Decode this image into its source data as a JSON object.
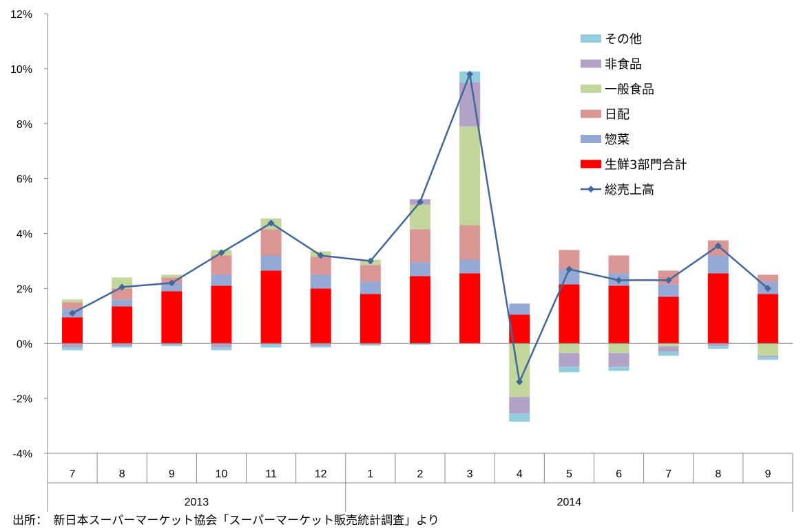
{
  "chart_data": {
    "type": "bar",
    "stacked": true,
    "x_labels": [
      "7",
      "8",
      "9",
      "10",
      "11",
      "12",
      "1",
      "2",
      "3",
      "4",
      "5",
      "6",
      "7",
      "8",
      "9"
    ],
    "year_groups": [
      {
        "label": "2013",
        "count": 6
      },
      {
        "label": "2014",
        "count": 9
      }
    ],
    "ylim": [
      -4,
      12
    ],
    "yticks": [
      "-4%",
      "-2%",
      "0%",
      "2%",
      "4%",
      "6%",
      "8%",
      "10%",
      "12%"
    ],
    "series": [
      {
        "name": "生鮮3部門合計",
        "color": "#ff0000",
        "values": [
          0.95,
          1.35,
          1.9,
          2.1,
          2.65,
          2.0,
          1.8,
          2.45,
          2.55,
          1.05,
          2.15,
          2.1,
          1.7,
          2.55,
          1.8
        ]
      },
      {
        "name": "惣菜",
        "color": "#95a9d6",
        "values": [
          0.3,
          0.25,
          0.3,
          0.4,
          0.55,
          0.5,
          0.45,
          0.5,
          0.5,
          0.4,
          0.55,
          0.45,
          0.45,
          0.65,
          0.45
        ]
      },
      {
        "name": "日配",
        "color": "#d99694",
        "values": [
          0.25,
          0.4,
          0.2,
          0.7,
          0.95,
          0.65,
          0.6,
          1.2,
          1.25,
          0.0,
          0.7,
          0.65,
          0.5,
          0.55,
          0.25
        ]
      },
      {
        "name": "一般食品",
        "color": "#c3d69b",
        "values": [
          0.1,
          0.4,
          0.1,
          0.2,
          0.4,
          0.2,
          0.2,
          0.9,
          3.6,
          -1.95,
          -0.35,
          -0.35,
          -0.1,
          0.0,
          -0.45
        ]
      },
      {
        "name": "非食品",
        "color": "#b3a2c7",
        "values": [
          -0.15,
          -0.1,
          -0.05,
          -0.15,
          -0.05,
          -0.1,
          -0.05,
          0.2,
          1.6,
          -0.6,
          -0.5,
          -0.5,
          -0.2,
          -0.1,
          -0.05
        ]
      },
      {
        "name": "その他",
        "color": "#93cddd",
        "values": [
          -0.1,
          -0.05,
          -0.05,
          -0.1,
          -0.1,
          -0.05,
          -0.03,
          -0.05,
          0.4,
          -0.3,
          -0.2,
          -0.15,
          -0.15,
          -0.1,
          -0.1
        ]
      }
    ],
    "line": {
      "name": "総売上高",
      "color": "#41679b",
      "values": [
        1.1,
        2.05,
        2.2,
        3.3,
        4.38,
        3.2,
        3.0,
        5.15,
        9.8,
        -1.4,
        2.7,
        2.3,
        2.3,
        3.55,
        2.0
      ]
    },
    "legend_order": [
      "その他",
      "非食品",
      "一般食品",
      "日配",
      "惣菜",
      "生鮮3部門合計",
      "総売上高"
    ],
    "legend_position": "top-right",
    "grid": false
  },
  "source_note": "出所：　新日本スーパーマーケット協会「スーパーマーケット販売統計調査」より"
}
